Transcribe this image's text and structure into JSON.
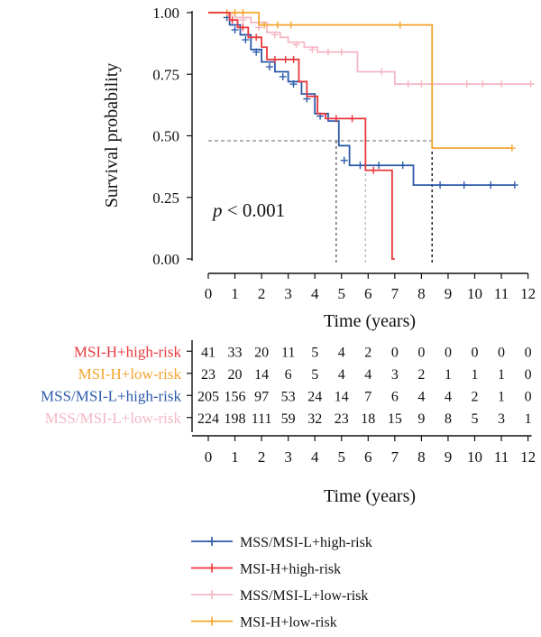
{
  "chart_data": {
    "type": "line",
    "subtype": "kaplan-meier",
    "ylabel": "Survival probability",
    "xlabel": "Time (years)",
    "xlim": [
      -0.3,
      12.3
    ],
    "ylim": [
      0,
      1
    ],
    "xticks": [
      "0",
      "1",
      "2",
      "3",
      "4",
      "5",
      "6",
      "7",
      "8",
      "9",
      "10",
      "11",
      "12"
    ],
    "yticks": [
      "0.00",
      "0.25",
      "0.50",
      "0.75",
      "1.00"
    ],
    "grid": false,
    "annotation": {
      "prefix": "p",
      "text": " < 0.001"
    },
    "median_guide": {
      "y": 0.48,
      "x_from": 0,
      "x_to": 8.4,
      "drops": [
        4.8,
        5.9,
        8.4
      ]
    },
    "series": [
      {
        "name": "MSI-H+high-risk",
        "color": "#e8383d",
        "points": [
          [
            0,
            1
          ],
          [
            0.5,
            1
          ],
          [
            0.8,
            0.97
          ],
          [
            1.1,
            0.94
          ],
          [
            1.5,
            0.9
          ],
          [
            2.0,
            0.86
          ],
          [
            2.2,
            0.81
          ],
          [
            3.1,
            0.81
          ],
          [
            3.4,
            0.72
          ],
          [
            3.7,
            0.66
          ],
          [
            4.1,
            0.59
          ],
          [
            4.4,
            0.57
          ],
          [
            5.9,
            0.57
          ],
          [
            5.9,
            0.36
          ],
          [
            6.9,
            0.36
          ],
          [
            6.9,
            0
          ],
          [
            7.0,
            0
          ]
        ],
        "censor": [
          [
            0.9,
            0.97
          ],
          [
            1.3,
            0.94
          ],
          [
            1.8,
            0.9
          ],
          [
            2.5,
            0.81
          ],
          [
            2.9,
            0.81
          ],
          [
            3.2,
            0.81
          ],
          [
            4.8,
            0.57
          ],
          [
            5.4,
            0.57
          ],
          [
            6.2,
            0.36
          ]
        ]
      },
      {
        "name": "MSI-H+low-risk",
        "color": "#f4a52f",
        "points": [
          [
            0,
            1
          ],
          [
            0.5,
            1
          ],
          [
            0.6,
            1
          ],
          [
            1.9,
            1
          ],
          [
            1.9,
            0.95
          ],
          [
            8.4,
            0.95
          ],
          [
            8.4,
            0.45
          ],
          [
            11.4,
            0.45
          ]
        ],
        "censor": [
          [
            0.7,
            1
          ],
          [
            1.0,
            1
          ],
          [
            1.3,
            1
          ],
          [
            2.1,
            0.95
          ],
          [
            2.6,
            0.95
          ],
          [
            3.1,
            0.95
          ],
          [
            7.2,
            0.95
          ],
          [
            11.4,
            0.45
          ]
        ]
      },
      {
        "name": "MSS/MSI-L+high-risk",
        "color": "#2c5aa9",
        "points": [
          [
            0,
            1
          ],
          [
            0.5,
            1
          ],
          [
            0.8,
            0.95
          ],
          [
            1.2,
            0.91
          ],
          [
            1.6,
            0.85
          ],
          [
            2.0,
            0.8
          ],
          [
            2.5,
            0.76
          ],
          [
            3.0,
            0.72
          ],
          [
            3.5,
            0.67
          ],
          [
            4.0,
            0.59
          ],
          [
            4.5,
            0.56
          ],
          [
            4.9,
            0.46
          ],
          [
            5.3,
            0.38
          ],
          [
            6.9,
            0.38
          ],
          [
            7.7,
            0.38
          ],
          [
            7.7,
            0.3
          ],
          [
            11.5,
            0.3
          ]
        ],
        "censor": [
          [
            0.7,
            0.98
          ],
          [
            1.0,
            0.93
          ],
          [
            1.4,
            0.89
          ],
          [
            1.8,
            0.84
          ],
          [
            2.3,
            0.78
          ],
          [
            2.8,
            0.74
          ],
          [
            3.2,
            0.71
          ],
          [
            3.7,
            0.65
          ],
          [
            4.2,
            0.58
          ],
          [
            5.1,
            0.4
          ],
          [
            5.7,
            0.38
          ],
          [
            6.4,
            0.38
          ],
          [
            7.3,
            0.38
          ],
          [
            8.7,
            0.3
          ],
          [
            9.6,
            0.3
          ],
          [
            10.6,
            0.3
          ],
          [
            11.5,
            0.3
          ]
        ]
      },
      {
        "name": "MSS/MSI-L+low-risk",
        "color": "#f4b7c5",
        "points": [
          [
            0,
            1
          ],
          [
            0.5,
            1
          ],
          [
            1.0,
            0.98
          ],
          [
            1.6,
            0.96
          ],
          [
            2.2,
            0.92
          ],
          [
            2.7,
            0.9
          ],
          [
            3.0,
            0.88
          ],
          [
            3.6,
            0.86
          ],
          [
            4.1,
            0.84
          ],
          [
            5.6,
            0.84
          ],
          [
            5.6,
            0.76
          ],
          [
            6.8,
            0.76
          ],
          [
            7.0,
            0.71
          ],
          [
            12.2,
            0.71
          ]
        ],
        "censor": [
          [
            0.8,
            0.99
          ],
          [
            1.3,
            0.97
          ],
          [
            1.9,
            0.94
          ],
          [
            2.5,
            0.91
          ],
          [
            3.3,
            0.87
          ],
          [
            3.9,
            0.85
          ],
          [
            4.5,
            0.84
          ],
          [
            5.0,
            0.84
          ],
          [
            6.5,
            0.76
          ],
          [
            7.5,
            0.71
          ],
          [
            8.0,
            0.71
          ],
          [
            8.4,
            0.71
          ],
          [
            9.7,
            0.71
          ],
          [
            10.3,
            0.71
          ],
          [
            11.0,
            0.71
          ],
          [
            12.1,
            0.71
          ]
        ]
      }
    ],
    "risk_table": {
      "xlabel": "Time (years)",
      "times": [
        "0",
        "1",
        "2",
        "3",
        "4",
        "5",
        "6",
        "7",
        "8",
        "9",
        "10",
        "11",
        "12"
      ],
      "rows": [
        {
          "label": "MSI-H+high-risk",
          "color": "#e8383d",
          "counts": [
            "41",
            "33",
            "20",
            "11",
            "5",
            "4",
            "2",
            "0",
            "0",
            "0",
            "0",
            "0",
            "0"
          ]
        },
        {
          "label": "MSI-H+low-risk",
          "color": "#f4a52f",
          "counts": [
            "23",
            "20",
            "14",
            "6",
            "5",
            "4",
            "4",
            "3",
            "2",
            "1",
            "1",
            "1",
            "0"
          ]
        },
        {
          "label": "MSS/MSI-L+high-risk",
          "color": "#2c5aa9",
          "counts": [
            "205",
            "156",
            "97",
            "53",
            "24",
            "14",
            "7",
            "6",
            "4",
            "4",
            "2",
            "1",
            "0"
          ]
        },
        {
          "label": "MSS/MSI-L+low-risk",
          "color": "#f4b7c5",
          "counts": [
            "224",
            "198",
            "111",
            "59",
            "32",
            "23",
            "18",
            "15",
            "9",
            "8",
            "5",
            "3",
            "1"
          ]
        }
      ]
    },
    "legend": {
      "placement": "bottom",
      "entries": [
        {
          "label": "MSS/MSI-L+high-risk",
          "color": "#2c5aa9"
        },
        {
          "label": "MSI-H+high-risk",
          "color": "#e8383d"
        },
        {
          "label": "MSS/MSI-L+low-risk",
          "color": "#f4b7c5"
        },
        {
          "label": "MSI-H+low-risk",
          "color": "#f4a52f"
        }
      ]
    }
  }
}
